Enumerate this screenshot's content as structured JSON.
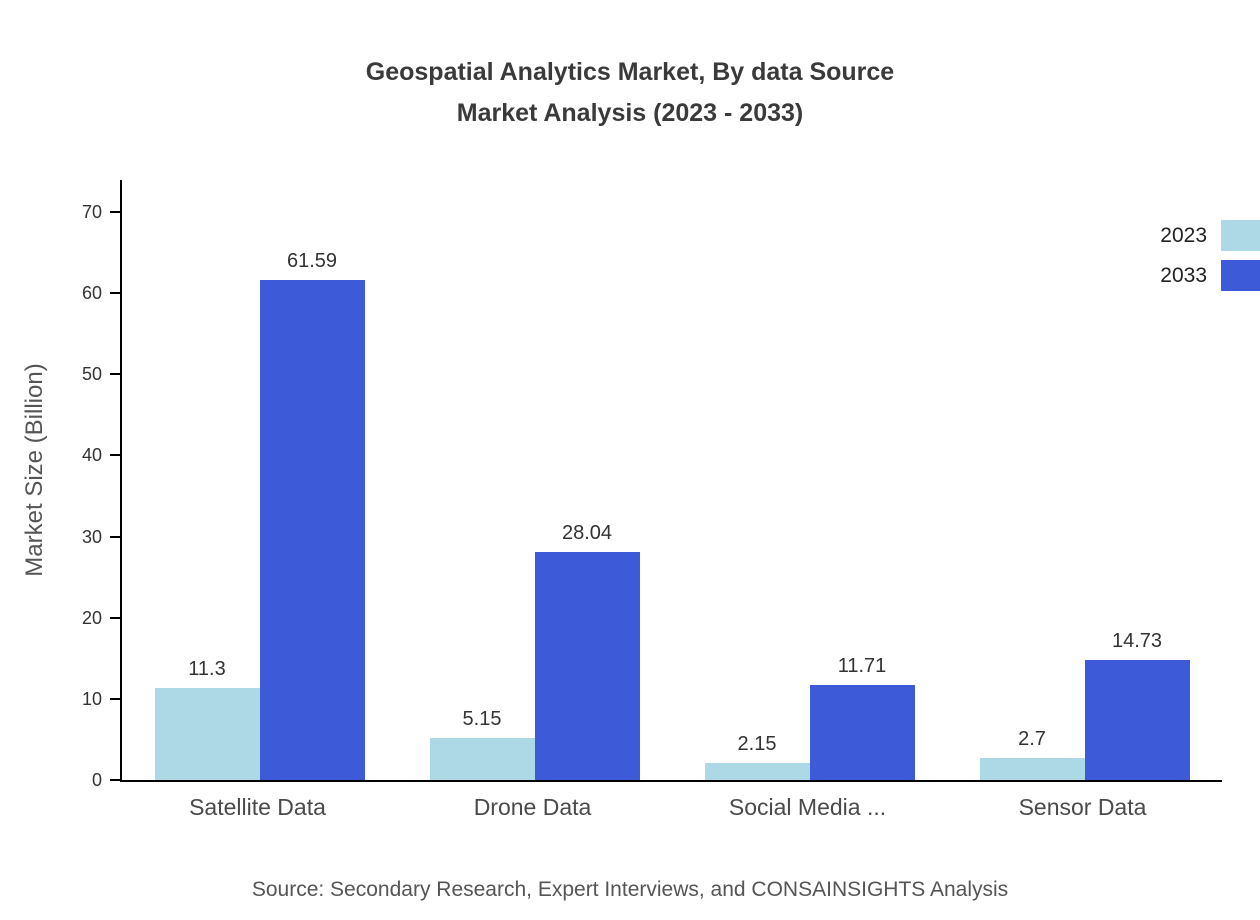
{
  "title": {
    "line1": "Geospatial Analytics Market, By data Source",
    "line2": "Market Analysis (2023 - 2033)"
  },
  "source_note": "Source: Secondary Research, Expert Interviews, and CONSAINSIGHTS Analysis",
  "chart_data": {
    "type": "bar",
    "title": "Geospatial Analytics Market, By data Source — Market Analysis (2023 - 2033)",
    "categories": [
      "Satellite Data",
      "Drone Data",
      "Social Media ...",
      "Sensor Data"
    ],
    "series": [
      {
        "name": "2023",
        "color": "#add8e6",
        "values": [
          11.3,
          5.15,
          2.15,
          2.7
        ]
      },
      {
        "name": "2033",
        "color": "#3d5bd9",
        "values": [
          61.59,
          28.04,
          11.71,
          14.73
        ]
      }
    ],
    "xlabel": "",
    "ylabel": "Market Size (Billion)",
    "ylim": [
      0,
      70
    ],
    "yticks": [
      0,
      10,
      20,
      30,
      40,
      50,
      60,
      70
    ],
    "legend_position": "top-right",
    "grid": false
  }
}
